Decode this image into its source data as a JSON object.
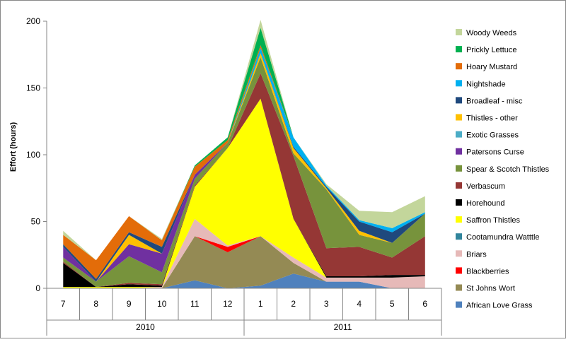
{
  "chart_data": {
    "type": "area",
    "stacked": true,
    "ylabel": "Effort  (hours)",
    "xlabel": "",
    "ylim": [
      0,
      200
    ],
    "yticks": [
      0,
      50,
      100,
      150,
      200
    ],
    "grid": false,
    "legend_position": "right",
    "categories": [
      "7",
      "8",
      "9",
      "10",
      "11",
      "12",
      "1",
      "2",
      "3",
      "4",
      "5",
      "6"
    ],
    "groups": [
      {
        "label": "2010",
        "span": 6
      },
      {
        "label": "2011",
        "span": 6
      }
    ],
    "series": [
      {
        "name": "African Love Grass",
        "color": "#4f81bd",
        "values": [
          0,
          0,
          0,
          0,
          6,
          0,
          2,
          11,
          5,
          5,
          0,
          0
        ]
      },
      {
        "name": "St Johns Wort",
        "color": "#948a54",
        "values": [
          0,
          0,
          0,
          0,
          33,
          27,
          37,
          8,
          0,
          0,
          0,
          0
        ]
      },
      {
        "name": "Blackberries",
        "color": "#ff0000",
        "values": [
          0,
          0,
          0,
          0,
          0,
          4,
          0,
          0,
          0,
          0,
          0,
          0
        ]
      },
      {
        "name": "Briars",
        "color": "#e6b9b8",
        "values": [
          0,
          0,
          0,
          1,
          13,
          1,
          0,
          4,
          3,
          3,
          8,
          9
        ]
      },
      {
        "name": "Cootamundra Watttle",
        "color": "#31859c",
        "values": [
          0,
          0,
          0,
          0,
          0,
          0,
          0,
          0,
          0,
          0,
          0,
          0
        ]
      },
      {
        "name": "Saffron Thistles",
        "color": "#ffff00",
        "values": [
          1,
          1,
          1,
          0,
          24,
          73,
          103,
          29,
          0,
          0,
          0,
          0
        ]
      },
      {
        "name": "Horehound",
        "color": "#000000",
        "values": [
          18,
          0,
          2,
          1,
          0,
          0,
          0,
          0,
          1,
          1,
          2,
          1
        ]
      },
      {
        "name": "Verbascum",
        "color": "#953735",
        "values": [
          1,
          0,
          1,
          1,
          1,
          0,
          19,
          47,
          21,
          22,
          13,
          29
        ]
      },
      {
        "name": "Spear & Scotch Thistles",
        "color": "#77933c",
        "values": [
          3,
          4,
          20,
          9,
          5,
          4,
          12,
          2,
          44,
          9,
          11,
          17
        ]
      },
      {
        "name": "Patersons Curse",
        "color": "#7030a0",
        "values": [
          8,
          0,
          9,
          14,
          3,
          0,
          0,
          0,
          0,
          0,
          0,
          0
        ]
      },
      {
        "name": "Exotic Grasses",
        "color": "#4bacc6",
        "values": [
          0,
          0,
          0,
          0,
          0,
          0,
          0,
          0,
          0,
          0,
          0,
          0
        ]
      },
      {
        "name": "Thistles - other",
        "color": "#ffc000",
        "values": [
          0,
          0,
          7,
          0,
          0,
          0,
          3,
          4,
          1,
          3,
          0,
          0
        ]
      },
      {
        "name": "Broadleaf - misc",
        "color": "#1f497d",
        "values": [
          2,
          2,
          2,
          5,
          0,
          0,
          0,
          1,
          1,
          7,
          8,
          0
        ]
      },
      {
        "name": "Nightshade",
        "color": "#00b0f0",
        "values": [
          0,
          0,
          0,
          0,
          0,
          0,
          4,
          7,
          1,
          1,
          3,
          1
        ]
      },
      {
        "name": "Hoary Mustard",
        "color": "#e36c09",
        "values": [
          7,
          14,
          12,
          5,
          6,
          2,
          2,
          0,
          0,
          0,
          0,
          0
        ]
      },
      {
        "name": "Prickly Lettuce",
        "color": "#00b050",
        "values": [
          0,
          0,
          0,
          0,
          1,
          2,
          13,
          0,
          0,
          0,
          0,
          0
        ]
      },
      {
        "name": "Woody Weeds",
        "color": "#c3d69b",
        "values": [
          3,
          0,
          0,
          1,
          0,
          0,
          6,
          0,
          1,
          7,
          12,
          12
        ]
      }
    ]
  }
}
